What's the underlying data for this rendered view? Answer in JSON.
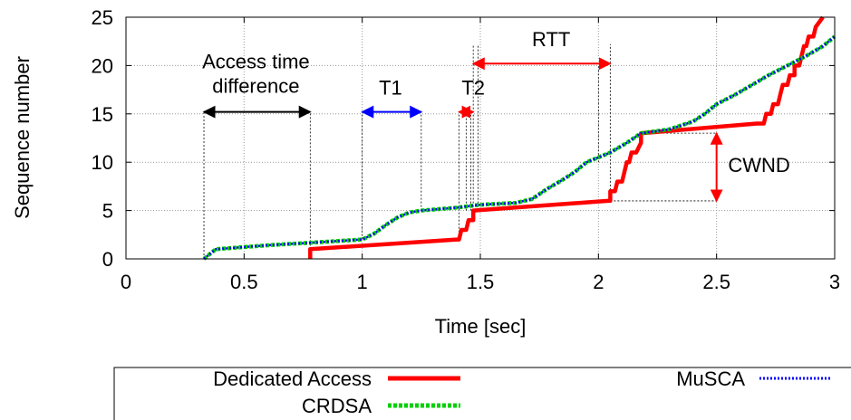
{
  "chart_data": {
    "type": "line",
    "xlabel": "Time [sec]",
    "ylabel": "Sequence number",
    "xlim": [
      0,
      3
    ],
    "ylim": [
      0,
      25
    ],
    "xticks": [
      "0",
      "0.5",
      "1",
      "1.5",
      "2",
      "2.5",
      "3"
    ],
    "yticks": [
      "0",
      "5",
      "10",
      "15",
      "20",
      "25"
    ],
    "grid": true,
    "legend_position": "bottom",
    "series": [
      {
        "name": "Dedicated Access",
        "color": "#ff0000",
        "style": "solid",
        "points": [
          [
            0.78,
            0
          ],
          [
            0.78,
            1
          ],
          [
            1.4,
            2
          ],
          [
            1.41,
            2
          ],
          [
            1.42,
            3
          ],
          [
            1.44,
            3
          ],
          [
            1.45,
            4
          ],
          [
            1.47,
            4
          ],
          [
            1.47,
            5
          ],
          [
            2.04,
            6
          ],
          [
            2.05,
            6
          ],
          [
            2.05,
            7
          ],
          [
            2.07,
            7
          ],
          [
            2.08,
            8
          ],
          [
            2.1,
            8
          ],
          [
            2.11,
            9
          ],
          [
            2.12,
            10
          ],
          [
            2.13,
            10
          ],
          [
            2.14,
            11
          ],
          [
            2.16,
            11
          ],
          [
            2.18,
            12
          ],
          [
            2.18,
            13
          ],
          [
            2.67,
            14
          ],
          [
            2.7,
            14
          ],
          [
            2.71,
            15
          ],
          [
            2.73,
            15
          ],
          [
            2.74,
            16
          ],
          [
            2.76,
            16
          ],
          [
            2.77,
            17
          ],
          [
            2.78,
            18
          ],
          [
            2.8,
            18
          ],
          [
            2.81,
            19
          ],
          [
            2.83,
            19
          ],
          [
            2.83,
            20
          ],
          [
            2.85,
            20
          ],
          [
            2.86,
            21
          ],
          [
            2.87,
            22
          ],
          [
            2.88,
            22
          ],
          [
            2.89,
            23
          ],
          [
            2.91,
            23
          ],
          [
            2.92,
            24
          ],
          [
            2.95,
            25
          ]
        ]
      },
      {
        "name": "CRDSA",
        "color": "#00d000",
        "style": "dotted",
        "points": [
          [
            0.33,
            0
          ],
          [
            0.36,
            0.6
          ],
          [
            0.38,
            1
          ],
          [
            0.6,
            1.4
          ],
          [
            0.8,
            1.7
          ],
          [
            1.0,
            2.0
          ],
          [
            1.05,
            2.6
          ],
          [
            1.1,
            3.5
          ],
          [
            1.15,
            4.3
          ],
          [
            1.2,
            4.8
          ],
          [
            1.25,
            5.0
          ],
          [
            1.4,
            5.3
          ],
          [
            1.5,
            5.6
          ],
          [
            1.65,
            5.8
          ],
          [
            1.72,
            6.2
          ],
          [
            1.78,
            7.2
          ],
          [
            1.85,
            8.2
          ],
          [
            1.9,
            9.0
          ],
          [
            1.95,
            10.0
          ],
          [
            2.05,
            11.0
          ],
          [
            2.12,
            12.0
          ],
          [
            2.18,
            13.0
          ],
          [
            2.3,
            13.4
          ],
          [
            2.4,
            14.2
          ],
          [
            2.45,
            15.0
          ],
          [
            2.5,
            16.0
          ],
          [
            2.58,
            17.0
          ],
          [
            2.65,
            18.0
          ],
          [
            2.72,
            19.0
          ],
          [
            2.8,
            20.0
          ],
          [
            2.88,
            21.0
          ],
          [
            2.95,
            22.0
          ],
          [
            3.0,
            23.0
          ]
        ]
      },
      {
        "name": "MuSCA",
        "color": "#0000ff",
        "style": "dotted",
        "points": [
          [
            0.33,
            0
          ],
          [
            0.36,
            0.6
          ],
          [
            0.38,
            1
          ],
          [
            0.6,
            1.4
          ],
          [
            0.8,
            1.7
          ],
          [
            1.0,
            2.0
          ],
          [
            1.05,
            2.6
          ],
          [
            1.1,
            3.5
          ],
          [
            1.15,
            4.3
          ],
          [
            1.2,
            4.8
          ],
          [
            1.25,
            5.0
          ],
          [
            1.4,
            5.3
          ],
          [
            1.5,
            5.6
          ],
          [
            1.65,
            5.8
          ],
          [
            1.72,
            6.2
          ],
          [
            1.78,
            7.2
          ],
          [
            1.85,
            8.2
          ],
          [
            1.9,
            9.0
          ],
          [
            1.95,
            10.0
          ],
          [
            2.05,
            11.0
          ],
          [
            2.12,
            12.0
          ],
          [
            2.18,
            13.0
          ],
          [
            2.3,
            13.4
          ],
          [
            2.4,
            14.2
          ],
          [
            2.45,
            15.0
          ],
          [
            2.5,
            16.0
          ],
          [
            2.58,
            17.0
          ],
          [
            2.65,
            18.0
          ],
          [
            2.72,
            19.0
          ],
          [
            2.8,
            20.0
          ],
          [
            2.88,
            21.0
          ],
          [
            2.95,
            22.0
          ],
          [
            3.0,
            23.0
          ]
        ]
      }
    ],
    "annotations": [
      {
        "label": "Access time difference",
        "line1": "Access time",
        "line2": "difference",
        "color": "#000000",
        "kind": "hspan",
        "x1": 0.33,
        "x2": 0.78,
        "y": 15.2,
        "text_x": 0.55,
        "text_y1": 19.7,
        "text_y2": 17.2
      },
      {
        "label": "T1",
        "color": "#0000ff",
        "kind": "hspan",
        "x1": 1.0,
        "x2": 1.25,
        "y": 15.2,
        "text_x": 1.12,
        "text_y": 17.0
      },
      {
        "label": "T2",
        "color": "#ff0000",
        "kind": "hspan",
        "x1": 1.41,
        "x2": 1.47,
        "y": 15.2,
        "text_x": 1.47,
        "text_y": 17.0
      },
      {
        "label": "RTT",
        "color": "#ff0000",
        "kind": "hspan",
        "x1": 1.47,
        "x2": 2.05,
        "y": 20.2,
        "text_x": 1.8,
        "text_y": 22.0
      },
      {
        "label": "CWND",
        "color": "#ff0000",
        "kind": "vspan",
        "x": 2.5,
        "y1": 6,
        "y2": 13,
        "text_x": 2.68,
        "text_y": 9.0
      }
    ],
    "guides": [
      {
        "x": 0.33,
        "y1": 0,
        "y2": 15.2
      },
      {
        "x": 0.78,
        "y1": 1,
        "y2": 15.2
      },
      {
        "x": 1.0,
        "y1": 2,
        "y2": 15.2
      },
      {
        "x": 1.25,
        "y1": 5,
        "y2": 15.2
      },
      {
        "x": 1.41,
        "y1": 2,
        "y2": 15.2
      },
      {
        "x": 1.44,
        "y1": 5,
        "y2": 15.2
      },
      {
        "x": 1.46,
        "y1": 5,
        "y2": 15.2
      },
      {
        "x": 1.47,
        "y1": 5,
        "y2": 22.2
      },
      {
        "x": 1.49,
        "y1": 5,
        "y2": 22.2
      },
      {
        "x": 2.0,
        "y1": 10,
        "y2": 20.2
      },
      {
        "x": 2.05,
        "y1": 6,
        "y2": 22.2
      }
    ],
    "hguides": [
      {
        "y": 13,
        "x1": 2.18,
        "x2": 2.5
      },
      {
        "y": 6,
        "x1": 2.05,
        "x2": 2.5
      }
    ]
  }
}
